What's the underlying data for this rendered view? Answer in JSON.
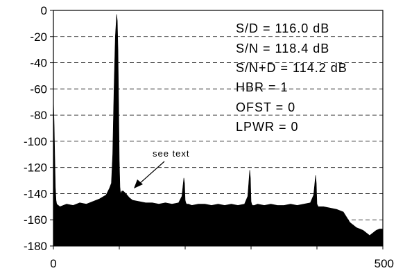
{
  "chart_data": {
    "type": "area",
    "title": "",
    "xlabel": "",
    "ylabel": "",
    "xlim": [
      0,
      500
    ],
    "ylim": [
      -180,
      0
    ],
    "x_ticks": [
      0,
      500
    ],
    "y_ticks": [
      0,
      -20,
      -40,
      -60,
      -80,
      -100,
      -120,
      -140,
      -160,
      -180
    ],
    "y_tick_labels": [
      "0",
      "-20",
      "-40",
      "-60",
      "-80",
      "-100",
      "-120",
      "-140",
      "-160",
      "-180"
    ],
    "x_tick_labels": [
      "0",
      "500"
    ],
    "grid": "horizontal-dashed",
    "fill_color": "#000000",
    "series": [
      {
        "x": [
          0,
          1,
          2,
          3,
          4,
          5,
          10,
          20,
          30,
          40,
          50,
          60,
          70,
          80,
          85,
          88,
          90,
          92,
          94,
          96,
          97,
          98,
          99,
          100,
          101,
          102,
          103,
          104,
          106,
          108,
          110,
          115,
          120,
          130,
          140,
          150,
          160,
          170,
          180,
          190,
          195,
          198,
          199,
          200,
          201,
          202,
          205,
          210,
          220,
          230,
          240,
          250,
          260,
          270,
          280,
          290,
          295,
          298,
          299,
          300,
          301,
          302,
          305,
          310,
          320,
          330,
          340,
          350,
          360,
          370,
          380,
          390,
          395,
          398,
          399,
          400,
          401,
          402,
          405,
          410,
          420,
          430,
          440,
          445,
          450,
          455,
          460,
          465,
          470,
          475,
          480,
          485,
          490,
          495,
          500
        ],
        "y": [
          -68,
          -85,
          -110,
          -135,
          -145,
          -148,
          -150,
          -148,
          -149,
          -147,
          -148,
          -146,
          -144,
          -141,
          -136,
          -132,
          -110,
          -60,
          -20,
          -3,
          -8,
          -30,
          -70,
          -115,
          -135,
          -140,
          -139,
          -138,
          -138,
          -139,
          -140,
          -143,
          -145,
          -146,
          -147,
          -147,
          -148,
          -147,
          -148,
          -147,
          -142,
          -128,
          -132,
          -145,
          -147,
          -148,
          -148,
          -149,
          -148,
          -148,
          -149,
          -148,
          -149,
          -148,
          -149,
          -148,
          -142,
          -122,
          -128,
          -146,
          -148,
          -149,
          -149,
          -148,
          -149,
          -148,
          -149,
          -149,
          -148,
          -149,
          -148,
          -147,
          -141,
          -126,
          -132,
          -148,
          -149,
          -150,
          -150,
          -150,
          -151,
          -152,
          -154,
          -158,
          -162,
          -164,
          -166,
          -167,
          -168,
          -170,
          -172,
          -170,
          -168,
          -167,
          -167
        ]
      }
    ]
  },
  "annotations": {
    "stats": [
      "S/D = 116.0 dB",
      "S/N = 118.4 dB",
      "S/N+D = 114.2 dB",
      "HBR = 1",
      "OFST = 0",
      "LPWR = 0"
    ],
    "arrow_note": "see text"
  }
}
